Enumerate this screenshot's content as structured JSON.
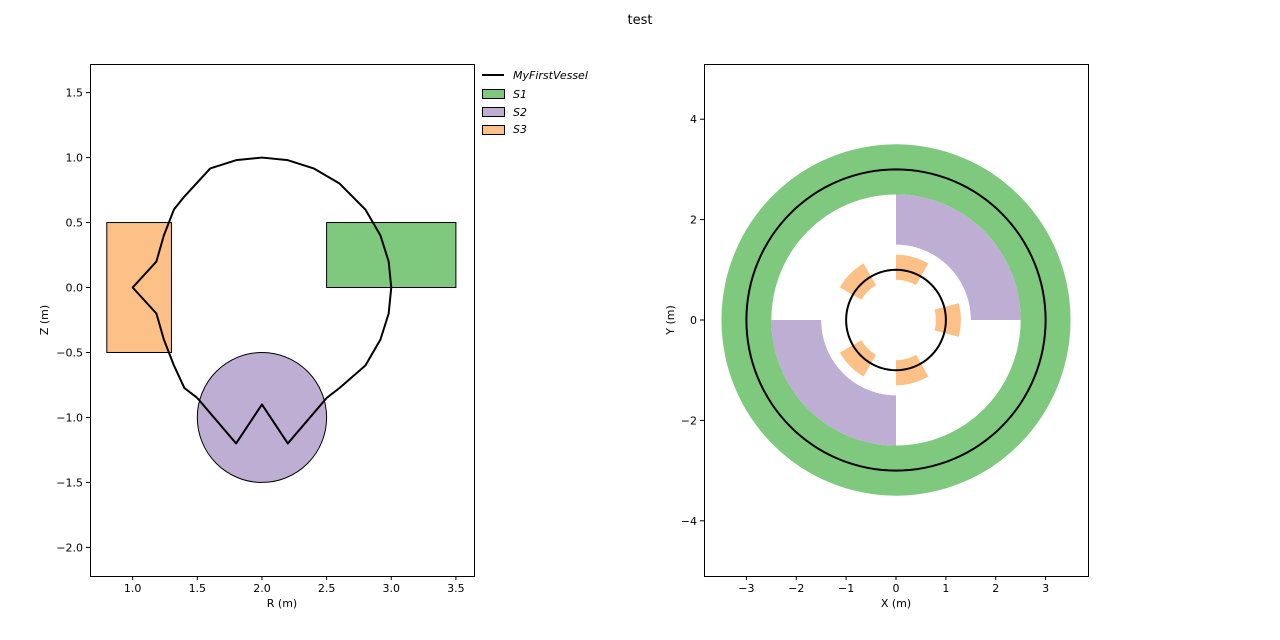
{
  "figure": {
    "title": "test"
  },
  "legend": {
    "placement": "outside-upper-right-of-left-axes",
    "entries": [
      {
        "label": "MyFirstVessel",
        "kind": "line",
        "color": "#000000"
      },
      {
        "label": "S1",
        "kind": "patch",
        "color": "#7fc97f"
      },
      {
        "label": "S2",
        "kind": "patch",
        "color": "#beaed4"
      },
      {
        "label": "S3",
        "kind": "patch",
        "color": "#fdc086"
      }
    ]
  },
  "colors": {
    "S1": "#7fc97f",
    "S2": "#beaed4",
    "S3": "#fdc086",
    "vessel": "#000000"
  },
  "chart_data": [
    {
      "type": "poloidal-cross-section",
      "xlabel": "R (m)",
      "ylabel": "Z (m)",
      "xlim": [
        0.67,
        3.64
      ],
      "ylim": [
        -2.22,
        1.72
      ],
      "xticks": [
        1.0,
        1.5,
        2.0,
        2.5,
        3.0,
        3.5
      ],
      "xtick_labels": [
        "1.0",
        "1.5",
        "2.0",
        "2.5",
        "3.0",
        "3.5"
      ],
      "yticks": [
        1.5,
        1.0,
        0.5,
        0.0,
        -0.5,
        -1.0,
        -1.5,
        -2.0
      ],
      "ytick_labels": [
        "1.5",
        "1.0",
        "0.5",
        "0.0",
        "−0.5",
        "−1.0",
        "−1.5",
        "−2.0"
      ],
      "vessel": {
        "name": "MyFirstVessel",
        "points": [
          [
            1.5,
            -0.85
          ],
          [
            1.4,
            -0.7732
          ],
          [
            1.3192,
            -0.6
          ],
          [
            1.2412,
            -0.4
          ],
          [
            1.1835,
            -0.2
          ],
          [
            1.0,
            0.0
          ],
          [
            1.1835,
            0.2
          ],
          [
            1.2412,
            0.4
          ],
          [
            1.3192,
            0.6
          ],
          [
            1.4,
            0.7
          ],
          [
            1.6,
            0.9165
          ],
          [
            1.8,
            0.98
          ],
          [
            2.0,
            1.0
          ],
          [
            2.2,
            0.98
          ],
          [
            2.4,
            0.9165
          ],
          [
            2.6,
            0.8
          ],
          [
            2.8,
            0.6
          ],
          [
            2.9165,
            0.4
          ],
          [
            2.98,
            0.2
          ],
          [
            3.0,
            0.0
          ],
          [
            2.98,
            -0.2
          ],
          [
            2.9165,
            -0.4
          ],
          [
            2.8,
            -0.6
          ],
          [
            2.6,
            -0.7732
          ],
          [
            2.5,
            -0.85
          ],
          [
            2.2,
            -1.2
          ],
          [
            2.0,
            -0.9
          ],
          [
            1.8,
            -1.2
          ],
          [
            1.5,
            -0.85
          ]
        ]
      },
      "structures": [
        {
          "name": "S1",
          "shape": "rectangle",
          "r": [
            2.5,
            3.5
          ],
          "z": [
            0.0,
            0.5
          ]
        },
        {
          "name": "S2",
          "shape": "circle",
          "center": [
            2.0,
            -1.0
          ],
          "radius": 0.5
        },
        {
          "name": "S3",
          "shape": "rectangle",
          "r": [
            0.8,
            1.3
          ],
          "z": [
            -0.5,
            0.5
          ]
        }
      ]
    },
    {
      "type": "toroidal-top-view",
      "xlabel": "X (m)",
      "ylabel": "Y (m)",
      "xlim": [
        -3.85,
        3.85
      ],
      "ylim": [
        -5.1,
        5.1
      ],
      "xticks": [
        -3,
        -2,
        -1,
        0,
        1,
        2,
        3
      ],
      "xtick_labels": [
        "−3",
        "−2",
        "−1",
        "0",
        "1",
        "2",
        "3"
      ],
      "yticks": [
        4,
        2,
        0,
        -2,
        -4
      ],
      "ytick_labels": [
        "4",
        "2",
        "0",
        "−2",
        "−4"
      ],
      "vessel_circles": {
        "radii_m": [
          1.0,
          3.0
        ]
      },
      "structures": [
        {
          "name": "S1",
          "shape": "annulus",
          "r": [
            2.5,
            3.5
          ],
          "angles_deg": [
            0,
            360
          ]
        },
        {
          "name": "S2",
          "shape": "annular-sector",
          "r": [
            1.5,
            2.5
          ],
          "angles_deg": [
            0,
            90
          ]
        },
        {
          "name": "S2",
          "shape": "annular-sector",
          "r": [
            1.5,
            2.5
          ],
          "angles_deg": [
            180,
            270
          ]
        },
        {
          "name": "S3",
          "shape": "annular-sector",
          "r": [
            0.8,
            1.3
          ],
          "angles_deg": [
            -15,
            15
          ]
        },
        {
          "name": "S3",
          "shape": "annular-sector",
          "r": [
            0.8,
            1.3
          ],
          "angles_deg": [
            60,
            90
          ]
        },
        {
          "name": "S3",
          "shape": "annular-sector",
          "r": [
            0.8,
            1.3
          ],
          "angles_deg": [
            120,
            150
          ]
        },
        {
          "name": "S3",
          "shape": "annular-sector",
          "r": [
            0.8,
            1.3
          ],
          "angles_deg": [
            210,
            240
          ]
        },
        {
          "name": "S3",
          "shape": "annular-sector",
          "r": [
            0.8,
            1.3
          ],
          "angles_deg": [
            270,
            300
          ]
        }
      ]
    }
  ]
}
